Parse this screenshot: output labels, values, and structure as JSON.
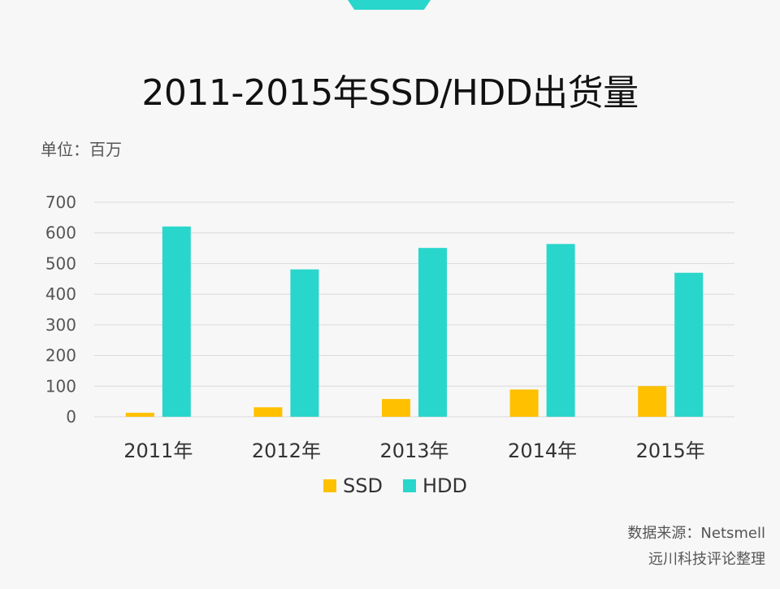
{
  "title": "2011-2015年SSD/HDD出货量",
  "unit_label": "单位：百万",
  "source": {
    "line1": "数据来源：Netsmell",
    "line2": "远川科技评论整理"
  },
  "colors": {
    "ssd": "#ffc000",
    "hdd": "#29d6cc",
    "grid": "#d9d9d9",
    "tick_text": "#555555"
  },
  "chart_data": {
    "type": "bar",
    "title": "2011-2015年SSD/HDD出货量",
    "categories": [
      "2011年",
      "2012年",
      "2013年",
      "2014年",
      "2015年"
    ],
    "series": [
      {
        "name": "SSD",
        "values": [
          13,
          31,
          58,
          89,
          100
        ]
      },
      {
        "name": "HDD",
        "values": [
          621,
          481,
          551,
          564,
          470
        ]
      }
    ],
    "y_ticks": [
      "0",
      "100",
      "200",
      "300",
      "400",
      "500",
      "600",
      "700"
    ],
    "ylim": [
      0,
      700
    ],
    "grid": true,
    "legend": "bottom-center"
  }
}
